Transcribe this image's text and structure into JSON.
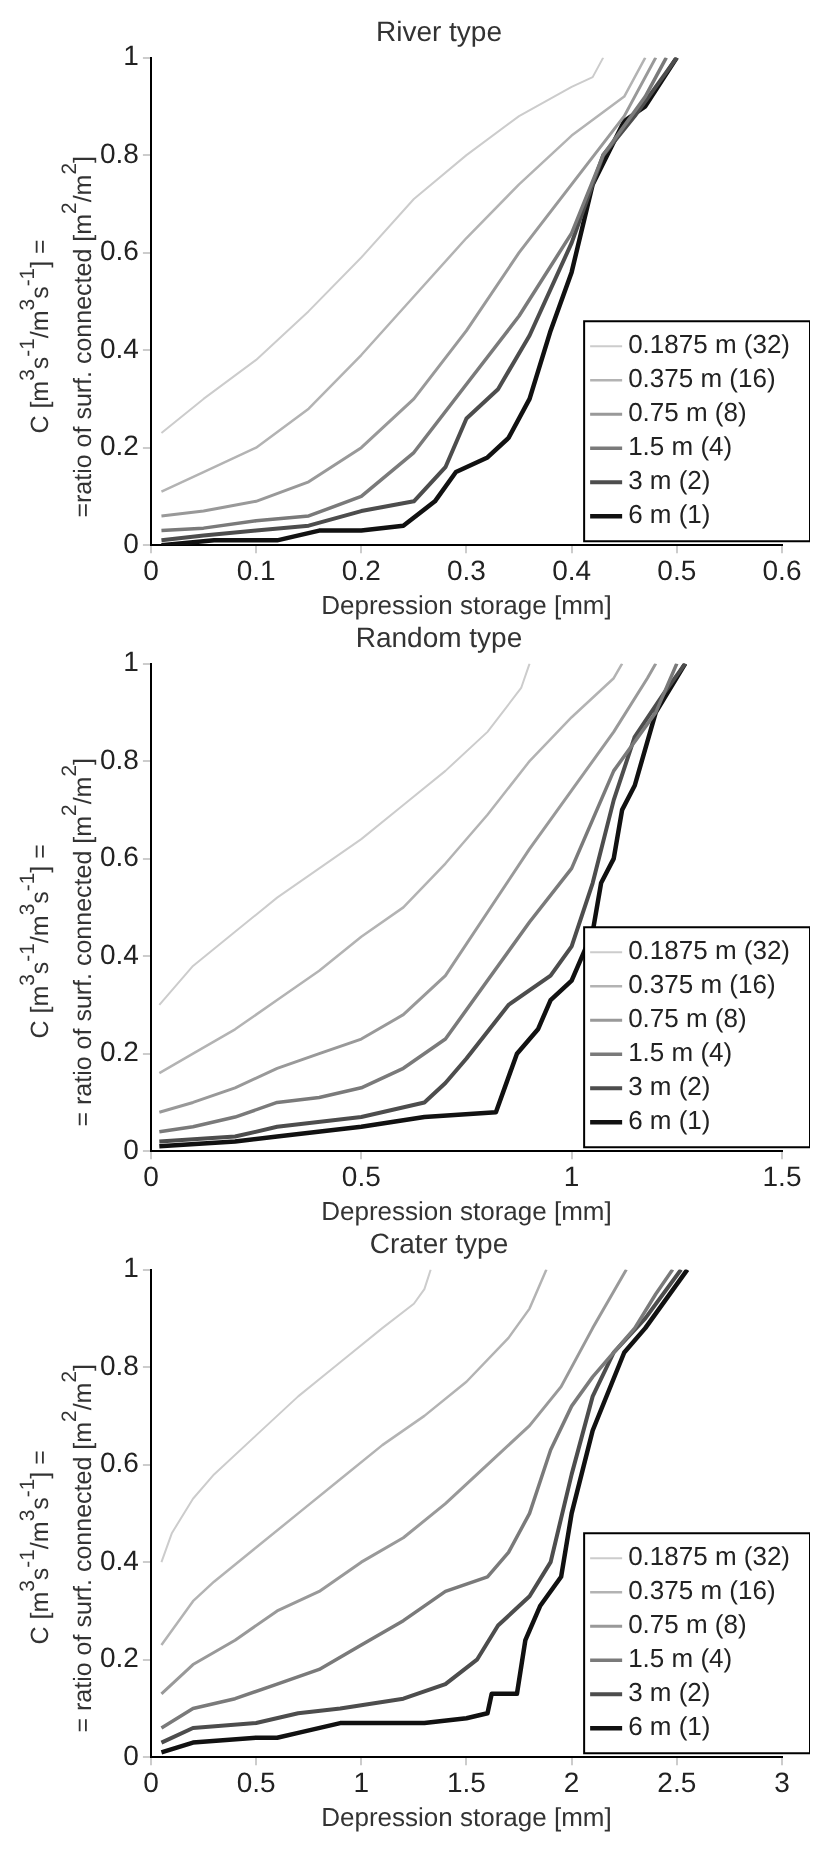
{
  "chart_data": [
    {
      "type": "line",
      "title": "River type",
      "xlabel": "Depression storage [mm]",
      "ylabel": "C [m$^{3}$s$^{-1}$/m$^{3}$s$^{-1}$] =\n=ratio of surf. connected [m$^{2}$/m$^{2}$]",
      "xlim": [
        0,
        0.6
      ],
      "xticks": [
        0,
        0.1,
        0.2,
        0.3,
        0.4,
        0.5,
        0.6
      ],
      "ylim": [
        0,
        1
      ],
      "yticks": [
        0,
        0.2,
        0.4,
        0.6,
        0.8,
        1
      ],
      "legend": "bottom right",
      "marker": "none",
      "line_style": "solid",
      "series": [
        {
          "name": "0.1875 m (32)",
          "color": "#cccccc",
          "x": [
            0.01,
            0.05,
            0.1,
            0.15,
            0.2,
            0.25,
            0.3,
            0.35,
            0.4,
            0.42,
            0.43
          ],
          "values": [
            0.23,
            0.3,
            0.38,
            0.48,
            0.59,
            0.71,
            0.8,
            0.88,
            0.94,
            0.96,
            1.0
          ]
        },
        {
          "name": "0.375 m (16)",
          "color": "#b3b3b3",
          "x": [
            0.01,
            0.05,
            0.1,
            0.15,
            0.2,
            0.25,
            0.3,
            0.35,
            0.4,
            0.45,
            0.47
          ],
          "values": [
            0.11,
            0.15,
            0.2,
            0.28,
            0.39,
            0.51,
            0.63,
            0.74,
            0.84,
            0.92,
            1.0
          ]
        },
        {
          "name": "0.75 m (8)",
          "color": "#999999",
          "x": [
            0.01,
            0.05,
            0.1,
            0.15,
            0.2,
            0.25,
            0.3,
            0.35,
            0.4,
            0.45,
            0.48
          ],
          "values": [
            0.06,
            0.07,
            0.09,
            0.13,
            0.2,
            0.3,
            0.44,
            0.6,
            0.74,
            0.88,
            1.0
          ]
        },
        {
          "name": "1.5 m (4)",
          "color": "#7a7a7a",
          "x": [
            0.01,
            0.05,
            0.1,
            0.15,
            0.2,
            0.25,
            0.3,
            0.35,
            0.4,
            0.43,
            0.47,
            0.49
          ],
          "values": [
            0.03,
            0.035,
            0.05,
            0.06,
            0.1,
            0.19,
            0.33,
            0.47,
            0.64,
            0.8,
            0.92,
            1.0
          ]
        },
        {
          "name": "3 m (2)",
          "color": "#4d4d4d",
          "x": [
            0.01,
            0.05,
            0.1,
            0.15,
            0.2,
            0.25,
            0.28,
            0.3,
            0.33,
            0.36,
            0.4,
            0.43,
            0.46,
            0.5
          ],
          "values": [
            0.01,
            0.02,
            0.03,
            0.04,
            0.07,
            0.09,
            0.16,
            0.26,
            0.32,
            0.43,
            0.62,
            0.8,
            0.88,
            1.0
          ]
        },
        {
          "name": "6 m (1)",
          "color": "#111111",
          "x": [
            0.01,
            0.06,
            0.12,
            0.16,
            0.2,
            0.24,
            0.27,
            0.29,
            0.32,
            0.34,
            0.36,
            0.38,
            0.4,
            0.42,
            0.45,
            0.47,
            0.5
          ],
          "values": [
            0.0,
            0.01,
            0.01,
            0.03,
            0.03,
            0.04,
            0.09,
            0.15,
            0.18,
            0.22,
            0.3,
            0.44,
            0.56,
            0.74,
            0.87,
            0.9,
            1.0
          ]
        }
      ]
    },
    {
      "type": "line",
      "title": "Random type",
      "xlabel": "Depression storage [mm]",
      "ylabel": "C [m$^{3}$s$^{-1}$/m$^{3}$s$^{-1}$] =\n= ratio of surf. connected [m$^{2}$/m$^{2}$]",
      "xlim": [
        0,
        1.5
      ],
      "xticks": [
        0,
        0.5,
        1,
        1.5
      ],
      "ylim": [
        0,
        1
      ],
      "yticks": [
        0,
        0.2,
        0.4,
        0.6,
        0.8,
        1
      ],
      "legend": "bottom right",
      "marker": "none",
      "line_style": "solid",
      "series": [
        {
          "name": "0.1875 m (32)",
          "color": "#cccccc",
          "x": [
            0.02,
            0.1,
            0.2,
            0.3,
            0.4,
            0.5,
            0.6,
            0.7,
            0.8,
            0.88,
            0.9
          ],
          "values": [
            0.3,
            0.38,
            0.45,
            0.52,
            0.58,
            0.64,
            0.71,
            0.78,
            0.86,
            0.95,
            1.0
          ]
        },
        {
          "name": "0.375 m (16)",
          "color": "#b3b3b3",
          "x": [
            0.02,
            0.1,
            0.2,
            0.3,
            0.4,
            0.5,
            0.6,
            0.7,
            0.8,
            0.9,
            1.0,
            1.1,
            1.12
          ],
          "values": [
            0.16,
            0.2,
            0.25,
            0.31,
            0.37,
            0.44,
            0.5,
            0.59,
            0.69,
            0.8,
            0.89,
            0.97,
            1.0
          ]
        },
        {
          "name": "0.75 m (8)",
          "color": "#999999",
          "x": [
            0.02,
            0.1,
            0.2,
            0.3,
            0.4,
            0.5,
            0.6,
            0.7,
            0.8,
            0.9,
            1.0,
            1.1,
            1.18,
            1.2
          ],
          "values": [
            0.08,
            0.1,
            0.13,
            0.17,
            0.2,
            0.23,
            0.28,
            0.36,
            0.49,
            0.62,
            0.74,
            0.86,
            0.97,
            1.0
          ]
        },
        {
          "name": "1.5 m (4)",
          "color": "#7a7a7a",
          "x": [
            0.02,
            0.1,
            0.2,
            0.3,
            0.4,
            0.5,
            0.6,
            0.7,
            0.8,
            0.9,
            1.0,
            1.05,
            1.1,
            1.2,
            1.25
          ],
          "values": [
            0.04,
            0.05,
            0.07,
            0.1,
            0.11,
            0.13,
            0.17,
            0.23,
            0.35,
            0.47,
            0.58,
            0.68,
            0.78,
            0.9,
            1.0
          ]
        },
        {
          "name": "3 m (2)",
          "color": "#4d4d4d",
          "x": [
            0.02,
            0.2,
            0.3,
            0.5,
            0.65,
            0.7,
            0.75,
            0.85,
            0.95,
            1.0,
            1.05,
            1.1,
            1.15,
            1.22,
            1.27
          ],
          "values": [
            0.02,
            0.03,
            0.05,
            0.07,
            0.1,
            0.14,
            0.19,
            0.3,
            0.36,
            0.42,
            0.55,
            0.72,
            0.85,
            0.94,
            1.0
          ]
        },
        {
          "name": "6 m (1)",
          "color": "#111111",
          "x": [
            0.02,
            0.2,
            0.3,
            0.5,
            0.65,
            0.82,
            0.87,
            0.92,
            0.95,
            1.0,
            1.05,
            1.07,
            1.1,
            1.12,
            1.15,
            1.2,
            1.27
          ],
          "values": [
            0.01,
            0.02,
            0.03,
            0.05,
            0.07,
            0.08,
            0.2,
            0.25,
            0.31,
            0.35,
            0.45,
            0.55,
            0.6,
            0.7,
            0.75,
            0.9,
            1.0
          ]
        }
      ]
    },
    {
      "type": "line",
      "title": "Crater type",
      "xlabel": "Depression storage [mm]",
      "ylabel": "C [m$^{3}$s$^{-1}$/m$^{3}$s$^{-1}$] =\n= ratio of surf. connected [m$^{2}$/m$^{2}$]",
      "xlim": [
        0,
        3
      ],
      "xticks": [
        0,
        0.5,
        1,
        1.5,
        2,
        2.5,
        3
      ],
      "ylim": [
        0,
        1
      ],
      "yticks": [
        0,
        0.2,
        0.4,
        0.6,
        0.8,
        1
      ],
      "legend": "bottom right",
      "marker": "none",
      "line_style": "solid",
      "series": [
        {
          "name": "0.1875 m (32)",
          "color": "#cccccc",
          "x": [
            0.05,
            0.1,
            0.2,
            0.3,
            0.5,
            0.7,
            0.9,
            1.1,
            1.25,
            1.3,
            1.33
          ],
          "values": [
            0.4,
            0.46,
            0.53,
            0.58,
            0.66,
            0.74,
            0.81,
            0.88,
            0.93,
            0.96,
            1.0
          ]
        },
        {
          "name": "0.375 m (16)",
          "color": "#b3b3b3",
          "x": [
            0.05,
            0.2,
            0.3,
            0.5,
            0.7,
            0.9,
            1.1,
            1.3,
            1.5,
            1.7,
            1.8,
            1.88
          ],
          "values": [
            0.23,
            0.32,
            0.36,
            0.43,
            0.5,
            0.57,
            0.64,
            0.7,
            0.77,
            0.86,
            0.92,
            1.0
          ]
        },
        {
          "name": "0.75 m (8)",
          "color": "#999999",
          "x": [
            0.05,
            0.2,
            0.4,
            0.6,
            0.8,
            1.0,
            1.2,
            1.4,
            1.6,
            1.8,
            1.95,
            2.1,
            2.26
          ],
          "values": [
            0.13,
            0.19,
            0.24,
            0.3,
            0.34,
            0.4,
            0.45,
            0.52,
            0.6,
            0.68,
            0.76,
            0.88,
            1.0
          ]
        },
        {
          "name": "1.5 m (4)",
          "color": "#7a7a7a",
          "x": [
            0.05,
            0.2,
            0.4,
            0.6,
            0.8,
            1.0,
            1.2,
            1.4,
            1.6,
            1.7,
            1.8,
            1.9,
            2.0,
            2.1,
            2.2,
            2.3,
            2.4,
            2.48
          ],
          "values": [
            0.06,
            0.1,
            0.12,
            0.15,
            0.18,
            0.23,
            0.28,
            0.34,
            0.37,
            0.42,
            0.5,
            0.63,
            0.72,
            0.78,
            0.83,
            0.88,
            0.95,
            1.0
          ]
        },
        {
          "name": "3 m (2)",
          "color": "#4d4d4d",
          "x": [
            0.05,
            0.2,
            0.5,
            0.7,
            0.9,
            1.2,
            1.4,
            1.55,
            1.65,
            1.8,
            1.9,
            2.0,
            2.1,
            2.2,
            2.35,
            2.52
          ],
          "values": [
            0.03,
            0.06,
            0.07,
            0.09,
            0.1,
            0.12,
            0.15,
            0.2,
            0.27,
            0.33,
            0.4,
            0.58,
            0.74,
            0.83,
            0.9,
            1.0
          ]
        },
        {
          "name": "6 m (1)",
          "color": "#111111",
          "x": [
            0.05,
            0.2,
            0.5,
            0.6,
            0.7,
            0.9,
            1.3,
            1.5,
            1.6,
            1.62,
            1.74,
            1.78,
            1.85,
            1.95,
            2.0,
            2.1,
            2.25,
            2.35,
            2.55
          ],
          "values": [
            0.01,
            0.03,
            0.04,
            0.04,
            0.05,
            0.07,
            0.07,
            0.08,
            0.09,
            0.13,
            0.13,
            0.24,
            0.31,
            0.37,
            0.5,
            0.67,
            0.83,
            0.88,
            1.0
          ]
        }
      ]
    }
  ]
}
